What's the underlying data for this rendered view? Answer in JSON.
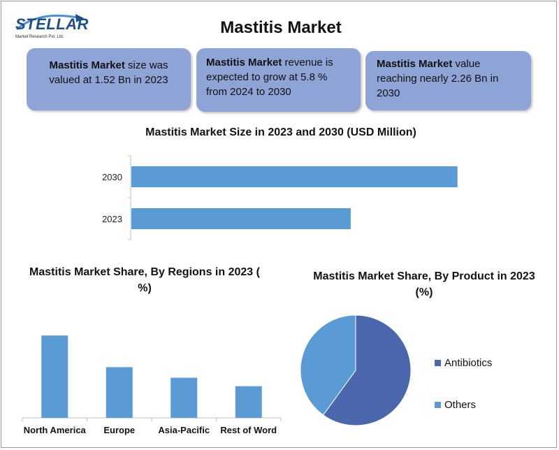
{
  "logo": {
    "word": "STELLAR",
    "sub": "Market Research Pvt. Ltd."
  },
  "title": "Mastitis Market",
  "cards": [
    {
      "bold": "Mastitis Market",
      "text": " size was valued at 1.52 Bn in 2023"
    },
    {
      "bold": "Mastitis Market",
      "text": " revenue is expected to grow at 5.8 % from 2024 to 2030"
    },
    {
      "bold": "Mastitis Market",
      "text": " value reaching nearly 2.26 Bn in 2030"
    }
  ],
  "colors": {
    "bar": "#5b9bd5",
    "card": "#8ea3d6",
    "antibiotics": "#4a66ac",
    "others": "#5b9bd5"
  },
  "chart_data": [
    {
      "type": "bar",
      "orientation": "horizontal",
      "title": "Mastitis Market Size in 2023 and 2030 (USD Million)",
      "categories": [
        "2030",
        "2023"
      ],
      "values": [
        2260,
        1520
      ],
      "xlim": [
        0,
        2300
      ]
    },
    {
      "type": "bar",
      "title": "Mastitis Market Share, By Regions in 2023 ( %)",
      "categories": [
        "North America",
        "Europe",
        "Asia-Pacific",
        "Rest of Word"
      ],
      "values": [
        39,
        24,
        19,
        15
      ],
      "ylim": [
        0,
        45
      ]
    },
    {
      "type": "pie",
      "title": "Mastitis Market Share, By Product in 2023 (%)",
      "categories": [
        "Antibiotics",
        "Others"
      ],
      "values": [
        60,
        40
      ]
    }
  ]
}
